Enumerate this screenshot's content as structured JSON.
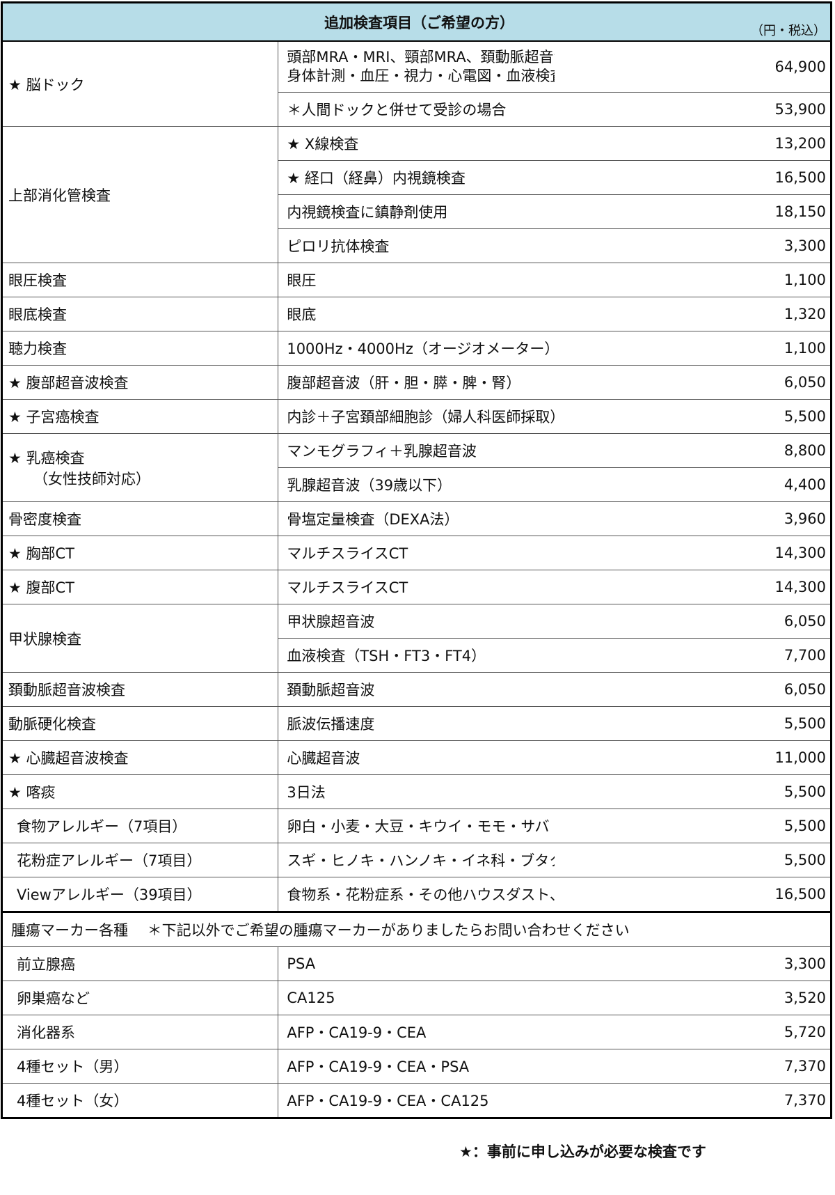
{
  "header": {
    "title": "追加検査項目（ご希望の方）",
    "unit": "（円・税込）"
  },
  "groups": [
    {
      "category": "★ 脳ドック",
      "items": [
        {
          "desc": [
            "頭部MRA・MRI、頸部MRA、頚動脈超音波",
            "身体計測・血圧・視力・心電図・血液検査・尿・医師診察"
          ],
          "price": "64,900"
        },
        {
          "desc": [
            "＊人間ドックと併せて受診の場合"
          ],
          "price": "53,900"
        }
      ]
    },
    {
      "category": "上部消化管検査",
      "items": [
        {
          "desc": [
            "★ X線検査"
          ],
          "price": "13,200"
        },
        {
          "desc": [
            "★ 経口（経鼻）内視鏡検査"
          ],
          "price": "16,500"
        },
        {
          "desc": [
            "内視鏡検査に鎮静剤使用"
          ],
          "price": "18,150"
        },
        {
          "desc": [
            "ピロリ抗体検査"
          ],
          "price": "3,300"
        }
      ]
    },
    {
      "category": "眼圧検査",
      "items": [
        {
          "desc": [
            "眼圧"
          ],
          "price": "1,100"
        }
      ]
    },
    {
      "category": "眼底検査",
      "items": [
        {
          "desc": [
            "眼底"
          ],
          "price": "1,320"
        }
      ]
    },
    {
      "category": "聴力検査",
      "items": [
        {
          "desc": [
            "1000Hz・4000Hz（オージオメーター）"
          ],
          "price": "1,100"
        }
      ]
    },
    {
      "category": "★ 腹部超音波検査",
      "items": [
        {
          "desc": [
            "腹部超音波（肝・胆・膵・脾・腎）"
          ],
          "price": "6,050"
        }
      ]
    },
    {
      "category": "★ 子宮癌検査",
      "items": [
        {
          "desc": [
            "内診＋子宮頚部細胞診（婦人科医師採取）"
          ],
          "price": "5,500"
        }
      ]
    },
    {
      "category": "★ 乳癌検査",
      "category_sub": "（女性技師対応）",
      "items": [
        {
          "desc": [
            "マンモグラフィ＋乳腺超音波"
          ],
          "price": "8,800"
        },
        {
          "desc": [
            "乳腺超音波（39歳以下）"
          ],
          "price": "4,400"
        }
      ]
    },
    {
      "category": "骨密度検査",
      "items": [
        {
          "desc": [
            "骨塩定量検査（DEXA法）"
          ],
          "price": "3,960"
        }
      ]
    },
    {
      "category": "★ 胸部CT",
      "items": [
        {
          "desc": [
            "マルチスライスCT"
          ],
          "price": "14,300"
        }
      ]
    },
    {
      "category": "★ 腹部CT",
      "items": [
        {
          "desc": [
            "マルチスライスCT"
          ],
          "price": "14,300"
        }
      ]
    },
    {
      "category": "甲状腺検査",
      "items": [
        {
          "desc": [
            "甲状腺超音波"
          ],
          "price": "6,050"
        },
        {
          "desc": [
            "血液検査（TSH・FT3・FT4）"
          ],
          "price": "7,700"
        }
      ]
    },
    {
      "category": "頚動脈超音波検査",
      "items": [
        {
          "desc": [
            "頚動脈超音波"
          ],
          "price": "6,050"
        }
      ]
    },
    {
      "category": "動脈硬化検査",
      "items": [
        {
          "desc": [
            "脈波伝播速度"
          ],
          "price": "5,500"
        }
      ]
    },
    {
      "category": "★ 心臓超音波検査",
      "items": [
        {
          "desc": [
            "心臓超音波"
          ],
          "price": "11,000"
        }
      ]
    },
    {
      "category": "★ 喀痰",
      "items": [
        {
          "desc": [
            "3日法"
          ],
          "price": "5,500"
        }
      ]
    },
    {
      "category": "食物アレルギー（7項目）",
      "items": [
        {
          "desc": [
            "卵白・小麦・大豆・キウイ・モモ・サバ・ゴマ"
          ],
          "price": "5,500"
        }
      ]
    },
    {
      "category": "花粉症アレルギー（7項目）",
      "items": [
        {
          "desc": [
            "スギ・ヒノキ・ハンノキ・イネ科・ブタクサ・ヨモギ・カナムグラ"
          ],
          "price": "5,500"
        }
      ]
    },
    {
      "category": "Viewアレルギー（39項目）",
      "items": [
        {
          "desc": [
            "食物系・花粉症系・その他ハウスダスト、ペット等"
          ],
          "price": "16,500"
        }
      ]
    }
  ],
  "tumor": {
    "heading": "腫瘍マーカー各種　 ＊下記以外でご希望の腫瘍マーカーがありましたらお問い合わせください",
    "rows": [
      {
        "category": "前立腺癌",
        "desc": "PSA",
        "price": "3,300"
      },
      {
        "category": "卵巣癌など",
        "desc": "CA125",
        "price": "3,520"
      },
      {
        "category": "消化器系",
        "desc": "AFP・CA19-9・CEA",
        "price": "5,720"
      },
      {
        "category": "4種セット（男）",
        "desc": "AFP・CA19-9・CEA・PSA",
        "price": "7,370"
      },
      {
        "category": "4種セット（女）",
        "desc": "AFP・CA19-9・CEA・CA125",
        "price": "7,370"
      }
    ]
  },
  "footer": {
    "note": "★：事前に申し込みが必要な検査です"
  },
  "colors": {
    "header_bg": "#b7dde8",
    "border": "#000000"
  }
}
